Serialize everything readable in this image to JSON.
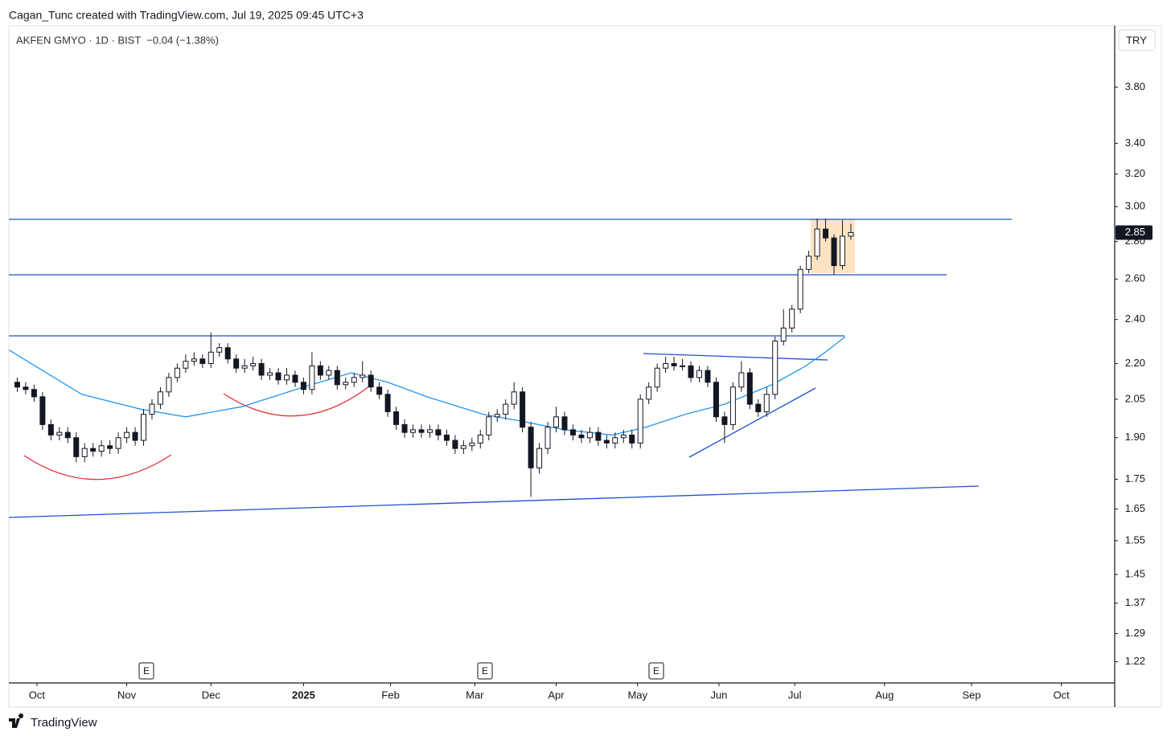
{
  "header": {
    "credit": "Cagan_Tunc created with TradingView.com, Jul 19, 2025 09:45 UTC+3",
    "logo": "TradingView"
  },
  "chart_data": {
    "type": "candlestick",
    "symbol": "AKFEN GMYO · 1D · BIST  −0.04 (−1.38%)",
    "currency": "TRY",
    "log_scale": true,
    "up_color": "#ffffff",
    "down_color": "#131722",
    "earnings_markers": [
      "E",
      "E",
      "E"
    ],
    "x": [
      -7,
      -4,
      -1,
      2,
      5,
      8,
      11,
      14,
      17,
      20,
      23,
      26,
      29,
      32,
      35,
      38,
      41,
      44,
      47,
      50,
      53,
      56,
      59,
      62,
      65,
      68,
      71,
      74,
      77,
      80,
      83,
      86,
      89,
      92,
      95,
      98,
      101,
      104,
      107,
      110,
      113,
      116,
      119,
      122,
      125,
      128,
      131,
      134,
      137,
      140,
      143,
      146,
      149,
      152,
      155,
      158,
      161,
      164,
      167,
      170,
      173,
      176,
      179,
      182,
      185,
      188,
      191,
      194,
      197,
      200,
      203,
      206,
      209,
      212,
      215,
      218,
      221,
      224,
      227,
      230,
      233,
      236,
      239,
      242,
      245,
      248,
      251,
      254,
      257,
      260,
      263,
      266,
      269,
      272,
      275,
      278,
      281,
      284,
      287,
      290
    ],
    "open": [
      2.12,
      2.1,
      2.09,
      2.06,
      1.95,
      1.91,
      1.92,
      1.9,
      1.83,
      1.86,
      1.85,
      1.87,
      1.86,
      1.9,
      1.92,
      1.89,
      1.99,
      2.03,
      2.08,
      2.14,
      2.18,
      2.21,
      2.22,
      2.2,
      2.25,
      2.27,
      2.22,
      2.18,
      2.19,
      2.2,
      2.15,
      2.16,
      2.13,
      2.15,
      2.12,
      2.09,
      2.19,
      2.15,
      2.17,
      2.11,
      2.12,
      2.14,
      2.15,
      2.1,
      2.07,
      2.0,
      1.95,
      1.92,
      1.93,
      1.92,
      1.93,
      1.91,
      1.89,
      1.86,
      1.87,
      1.88,
      1.91,
      1.98,
      1.99,
      2.03,
      2.08,
      1.94,
      1.79,
      1.86,
      1.94,
      1.98,
      1.93,
      1.91,
      1.9,
      1.92,
      1.89,
      1.88,
      1.9,
      1.91,
      1.88,
      2.05,
      2.1,
      2.18,
      2.2,
      2.19,
      2.19,
      2.14,
      2.17,
      2.12,
      1.98,
      1.95,
      2.1,
      2.16,
      2.03,
      2.0,
      2.07,
      2.3,
      2.36,
      2.45,
      2.65,
      2.72,
      2.87,
      2.82,
      2.67,
      2.83
    ],
    "high": [
      2.14,
      2.12,
      2.11,
      2.08,
      1.97,
      1.94,
      1.94,
      1.92,
      1.88,
      1.88,
      1.89,
      1.89,
      1.92,
      1.94,
      1.94,
      2.01,
      2.05,
      2.1,
      2.16,
      2.2,
      2.24,
      2.25,
      2.24,
      2.34,
      2.29,
      2.29,
      2.24,
      2.22,
      2.23,
      2.22,
      2.18,
      2.18,
      2.18,
      2.17,
      2.14,
      2.25,
      2.21,
      2.19,
      2.19,
      2.14,
      2.16,
      2.21,
      2.17,
      2.12,
      2.09,
      2.02,
      1.97,
      1.95,
      1.95,
      1.95,
      1.95,
      1.93,
      1.91,
      1.89,
      1.9,
      1.93,
      2.0,
      2.01,
      2.05,
      2.12,
      2.1,
      1.96,
      1.88,
      1.96,
      2.02,
      2.0,
      1.95,
      1.93,
      1.94,
      1.94,
      1.91,
      1.92,
      1.93,
      1.93,
      2.07,
      2.12,
      2.2,
      2.23,
      2.23,
      2.22,
      2.21,
      2.19,
      2.19,
      2.14,
      2.0,
      2.12,
      2.21,
      2.18,
      2.05,
      2.1,
      2.32,
      2.45,
      2.47,
      2.67,
      2.75,
      2.93,
      2.93,
      2.84,
      2.92,
      2.9
    ],
    "low": [
      2.08,
      2.07,
      2.04,
      1.93,
      1.89,
      1.89,
      1.88,
      1.81,
      1.81,
      1.83,
      1.83,
      1.84,
      1.84,
      1.88,
      1.87,
      1.87,
      1.97,
      2.01,
      2.06,
      2.12,
      2.16,
      2.19,
      2.18,
      2.18,
      2.23,
      2.2,
      2.16,
      2.16,
      2.17,
      2.13,
      2.13,
      2.11,
      2.11,
      2.1,
      2.07,
      2.07,
      2.13,
      2.13,
      2.09,
      2.09,
      2.1,
      2.12,
      2.08,
      2.05,
      1.98,
      1.93,
      1.9,
      1.9,
      1.9,
      1.9,
      1.89,
      1.87,
      1.84,
      1.84,
      1.85,
      1.86,
      1.89,
      1.96,
      1.97,
      2.01,
      1.92,
      1.69,
      1.77,
      1.84,
      1.92,
      1.91,
      1.89,
      1.88,
      1.88,
      1.87,
      1.86,
      1.86,
      1.88,
      1.86,
      1.86,
      2.03,
      2.08,
      2.16,
      2.17,
      2.17,
      2.12,
      2.12,
      2.1,
      1.96,
      1.88,
      1.93,
      2.08,
      2.01,
      1.98,
      1.98,
      2.05,
      2.28,
      2.34,
      2.43,
      2.63,
      2.7,
      2.8,
      2.62,
      2.65,
      2.81
    ],
    "close": [
      2.1,
      2.09,
      2.06,
      1.95,
      1.91,
      1.92,
      1.9,
      1.83,
      1.86,
      1.85,
      1.87,
      1.86,
      1.9,
      1.92,
      1.89,
      1.99,
      2.03,
      2.08,
      2.14,
      2.18,
      2.21,
      2.22,
      2.2,
      2.25,
      2.27,
      2.22,
      2.18,
      2.19,
      2.2,
      2.15,
      2.16,
      2.13,
      2.15,
      2.12,
      2.09,
      2.19,
      2.15,
      2.17,
      2.11,
      2.12,
      2.14,
      2.15,
      2.1,
      2.07,
      2.0,
      1.95,
      1.92,
      1.93,
      1.92,
      1.93,
      1.91,
      1.89,
      1.86,
      1.87,
      1.88,
      1.91,
      1.98,
      1.99,
      2.03,
      2.08,
      1.94,
      1.79,
      1.86,
      1.94,
      1.98,
      1.93,
      1.91,
      1.9,
      1.92,
      1.89,
      1.88,
      1.9,
      1.91,
      1.88,
      2.05,
      2.1,
      2.18,
      2.2,
      2.19,
      2.19,
      2.14,
      2.17,
      2.12,
      1.98,
      1.95,
      2.1,
      2.16,
      2.03,
      2.0,
      2.07,
      2.3,
      2.36,
      2.45,
      2.65,
      2.72,
      2.87,
      2.82,
      2.67,
      2.83,
      2.85
    ],
    "moving_average": {
      "color": "#2196f3",
      "x": [
        -10,
        16,
        37,
        53,
        73,
        95,
        112,
        125,
        139,
        159,
        174,
        188,
        205,
        217,
        231,
        245,
        262,
        274,
        282,
        288
      ],
      "values": [
        2.26,
        2.07,
        2.01,
        1.98,
        2.02,
        2.1,
        2.16,
        2.12,
        2.06,
        1.99,
        1.96,
        1.93,
        1.91,
        1.94,
        1.99,
        2.03,
        2.11,
        2.19,
        2.26,
        2.32
      ]
    },
    "xlim": [
      -10,
      384
    ],
    "xticks": [
      {
        "value": 0,
        "label": "Oct"
      },
      {
        "value": 32,
        "label": "Nov"
      },
      {
        "value": 62,
        "label": "Dec"
      },
      {
        "value": 95,
        "label": "2025"
      },
      {
        "value": 126,
        "label": "Feb"
      },
      {
        "value": 156,
        "label": "Mar"
      },
      {
        "value": 185,
        "label": "Apr"
      },
      {
        "value": 214,
        "label": "May"
      },
      {
        "value": 243,
        "label": "Jun"
      },
      {
        "value": 270,
        "label": "Jul"
      },
      {
        "value": 302,
        "label": "Aug"
      },
      {
        "value": 333,
        "label": "Sep"
      },
      {
        "value": 365,
        "label": "Oct"
      }
    ],
    "ylim": [
      1.17,
      4.29
    ],
    "yticks": [
      {
        "value": 3.8,
        "label": "3.80"
      },
      {
        "value": 3.4,
        "label": "3.40"
      },
      {
        "value": 3.2,
        "label": "3.20"
      },
      {
        "value": 3.0,
        "label": "3.00"
      },
      {
        "value": 2.8,
        "label": "2.80"
      },
      {
        "value": 2.6,
        "label": "2.60"
      },
      {
        "value": 2.4,
        "label": "2.40"
      },
      {
        "value": 2.2,
        "label": "2.20"
      },
      2.05,
      {
        "value": 1.9,
        "label": "1.90"
      },
      1.75,
      1.65,
      1.55,
      1.45,
      1.37,
      1.29,
      1.22
    ]
  }
}
